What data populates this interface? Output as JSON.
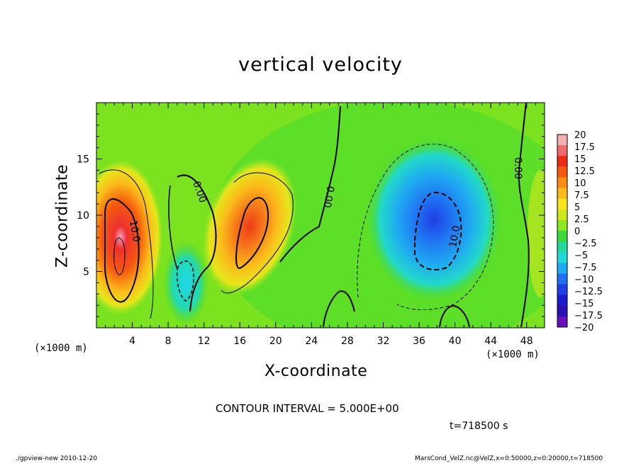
{
  "chart_data": {
    "type": "heatmap",
    "title": "vertical velocity",
    "xlabel": "X-coordinate",
    "ylabel": "Z-coordinate",
    "x_unit": "(×1000 m)",
    "xlim": [
      0,
      50
    ],
    "ylim": [
      0,
      20
    ],
    "x_ticks": [
      "4",
      "8",
      "12",
      "16",
      "20",
      "24",
      "28",
      "32",
      "36",
      "40",
      "44",
      "48"
    ],
    "y_ticks": [
      "5",
      "10",
      "15"
    ],
    "colorbar": {
      "labels": [
        "20",
        "17.5",
        "15",
        "12.5",
        "10",
        "7.5",
        "5",
        "2.5",
        "0",
        "−2.5",
        "−5",
        "−7.5",
        "−10",
        "−12.5",
        "−15",
        "−17.5",
        "−20"
      ],
      "colors": [
        "#f7b0b0",
        "#f06a6a",
        "#ea2a14",
        "#f55a0e",
        "#fb8e12",
        "#fbbc1a",
        "#f7e51c",
        "#cfe81c",
        "#8ee61e",
        "#3cd93a",
        "#22d99a",
        "#1fd8d8",
        "#1faaf2",
        "#1f70f2",
        "#1f3fe6",
        "#1a1acf",
        "#2a10b4",
        "#6a10b8"
      ]
    },
    "contour_labels": [
      "10.0",
      "0.00",
      "0.00",
      "10.0",
      "0.00"
    ],
    "features": [
      {
        "kind": "updraft",
        "x": 2.5,
        "z": 6.5,
        "peak": 20
      },
      {
        "kind": "updraft",
        "x": 16.5,
        "z": 8,
        "peak": 15
      },
      {
        "kind": "downdraft",
        "x": 10,
        "z": 4,
        "peak": -7.5
      },
      {
        "kind": "downdraft",
        "x": 37.5,
        "z": 9,
        "peak": -15
      }
    ],
    "contour_interval_text": "CONTOUR INTERVAL = 5.000E+00",
    "time_text": "t=718500 s"
  },
  "footer": {
    "left": "./gpview-new  2010-12-20",
    "right": "MarsCond_VelZ.nc@VelZ,x=0:50000,z=0:20000,t=718500"
  }
}
